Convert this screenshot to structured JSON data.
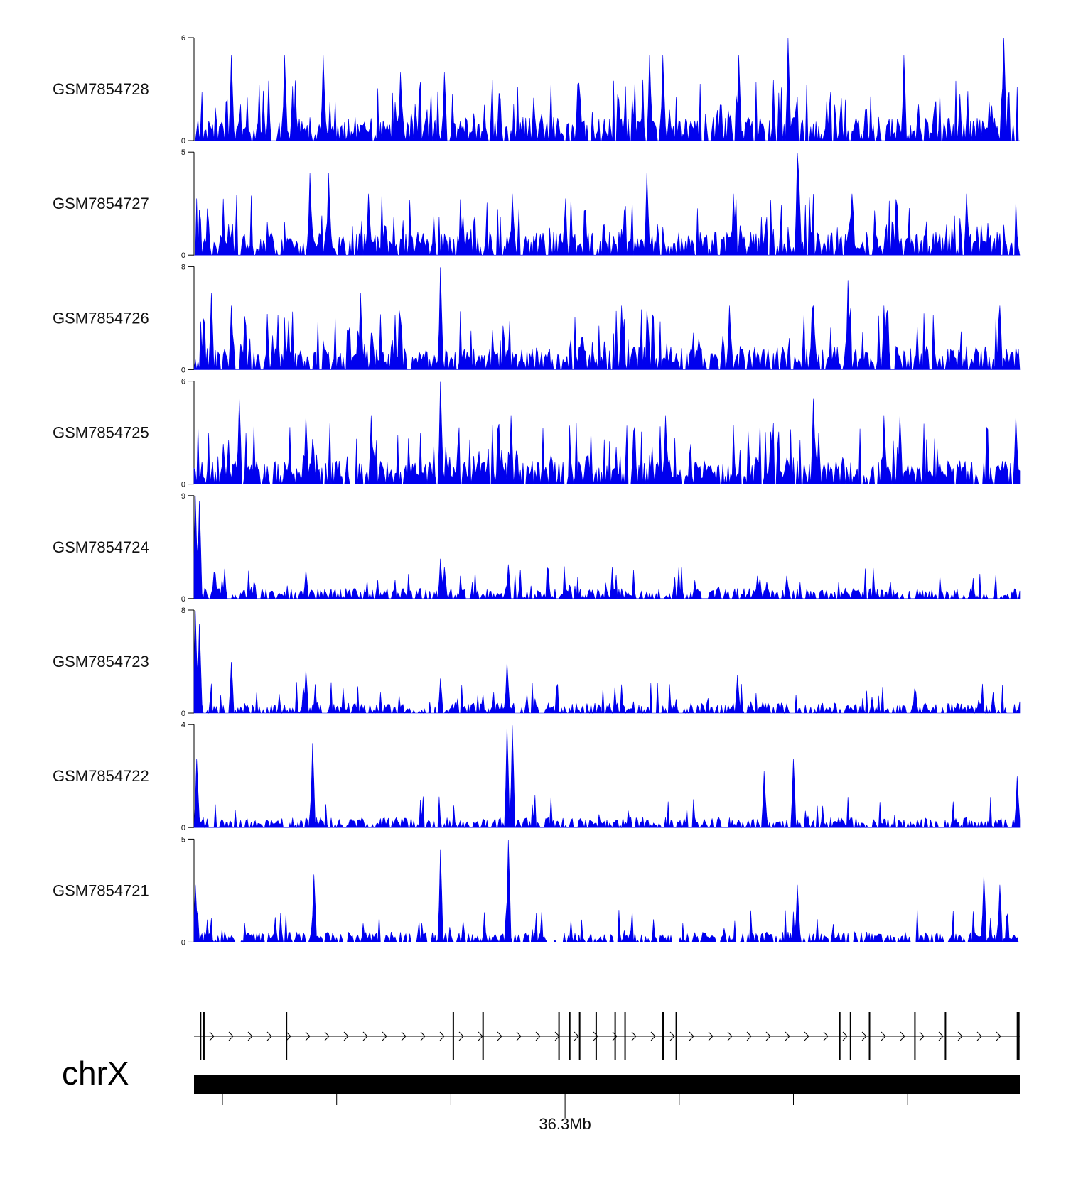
{
  "chart_data": {
    "type": "area",
    "title": "",
    "chromosome": "chrX",
    "genome_axis": {
      "unit": "Mb",
      "labeled_ticks": [
        {
          "value": 36.3,
          "label": "36.3Mb"
        }
      ],
      "tick_count": 7
    },
    "fill_color": "#0000ee",
    "tracks": [
      {
        "name": "GSM7854728",
        "ylim": [
          0,
          6
        ],
        "tick_labels": [
          "6",
          "0"
        ],
        "seed": 28,
        "peaks": [
          [
            0.045,
            5.0
          ],
          [
            0.11,
            5.0
          ],
          [
            0.157,
            5.0
          ],
          [
            0.25,
            4.0
          ],
          [
            0.304,
            4.0
          ],
          [
            0.552,
            5.0
          ],
          [
            0.567,
            5.0
          ],
          [
            0.659,
            5.0
          ],
          [
            0.719,
            6.0
          ],
          [
            0.859,
            5.0
          ],
          [
            0.98,
            6.0
          ]
        ]
      },
      {
        "name": "GSM7854727",
        "ylim": [
          0,
          5
        ],
        "tick_labels": [
          "5",
          "0"
        ],
        "seed": 27,
        "peaks": [
          [
            0.141,
            4.0
          ],
          [
            0.163,
            4.0
          ],
          [
            0.212,
            3.0
          ],
          [
            0.385,
            3.0
          ],
          [
            0.549,
            4.0
          ],
          [
            0.653,
            3.0
          ],
          [
            0.733,
            4.0
          ],
          [
            0.73,
            5.0
          ],
          [
            0.796,
            3.0
          ],
          [
            0.935,
            3.0
          ]
        ]
      },
      {
        "name": "GSM7854726",
        "ylim": [
          0,
          8
        ],
        "tick_labels": [
          "8",
          "0"
        ],
        "seed": 26,
        "peaks": [
          [
            0.021,
            6.0
          ],
          [
            0.045,
            5.0
          ],
          [
            0.202,
            6.0
          ],
          [
            0.298,
            8.0
          ],
          [
            0.518,
            5.0
          ],
          [
            0.649,
            5.0
          ],
          [
            0.75,
            5.0
          ],
          [
            0.792,
            7.0
          ],
          [
            0.836,
            5.0
          ],
          [
            0.975,
            5.0
          ]
        ]
      },
      {
        "name": "GSM7854725",
        "ylim": [
          0,
          6
        ],
        "tick_labels": [
          "6",
          "0"
        ],
        "seed": 25,
        "peaks": [
          [
            0.055,
            5.0
          ],
          [
            0.136,
            4.0
          ],
          [
            0.214,
            4.0
          ],
          [
            0.299,
            6.0
          ],
          [
            0.384,
            4.0
          ],
          [
            0.571,
            4.0
          ],
          [
            0.75,
            5.0
          ],
          [
            0.835,
            4.0
          ],
          [
            0.855,
            4.0
          ],
          [
            0.995,
            4.0
          ]
        ]
      },
      {
        "name": "GSM7854724",
        "ylim": [
          0,
          9
        ],
        "tick_labels": [
          "9",
          "0"
        ],
        "seed": 24,
        "peaks": [
          [
            0.002,
            9.0
          ],
          [
            0.006,
            8.6
          ],
          [
            0.298,
            3.5
          ],
          [
            0.303,
            2.8
          ],
          [
            0.38,
            3.0
          ],
          [
            0.136,
            2.5
          ],
          [
            0.683,
            2.0
          ],
          [
            0.718,
            2.0
          ]
        ]
      },
      {
        "name": "GSM7854723",
        "ylim": [
          0,
          8
        ],
        "tick_labels": [
          "8",
          "0"
        ],
        "seed": 23,
        "peaks": [
          [
            0.002,
            8.0
          ],
          [
            0.006,
            7.0
          ],
          [
            0.045,
            4.0
          ],
          [
            0.136,
            3.4
          ],
          [
            0.298,
            2.7
          ],
          [
            0.379,
            4.0
          ],
          [
            0.658,
            3.0
          ]
        ]
      },
      {
        "name": "GSM7854722",
        "ylim": [
          0,
          4
        ],
        "tick_labels": [
          "4",
          "0"
        ],
        "seed": 22,
        "peaks": [
          [
            0.004,
            2.7
          ],
          [
            0.143,
            3.3
          ],
          [
            0.379,
            4.0
          ],
          [
            0.385,
            4.0
          ],
          [
            0.726,
            2.7
          ],
          [
            0.69,
            2.2
          ],
          [
            0.997,
            2.0
          ]
        ]
      },
      {
        "name": "GSM7854721",
        "ylim": [
          0,
          5
        ],
        "tick_labels": [
          "5",
          "0"
        ],
        "seed": 21,
        "peaks": [
          [
            0.002,
            2.8
          ],
          [
            0.145,
            3.3
          ],
          [
            0.298,
            4.5
          ],
          [
            0.38,
            5.0
          ],
          [
            0.73,
            2.8
          ],
          [
            0.956,
            3.3
          ],
          [
            0.975,
            2.8
          ]
        ]
      }
    ],
    "gene_model": {
      "strand": "+",
      "exon_positions": [
        0.008,
        0.012,
        0.112,
        0.314,
        0.35,
        0.442,
        0.455,
        0.467,
        0.487,
        0.51,
        0.522,
        0.568,
        0.584,
        0.782,
        0.795,
        0.818,
        0.873,
        0.91,
        0.998
      ]
    }
  }
}
